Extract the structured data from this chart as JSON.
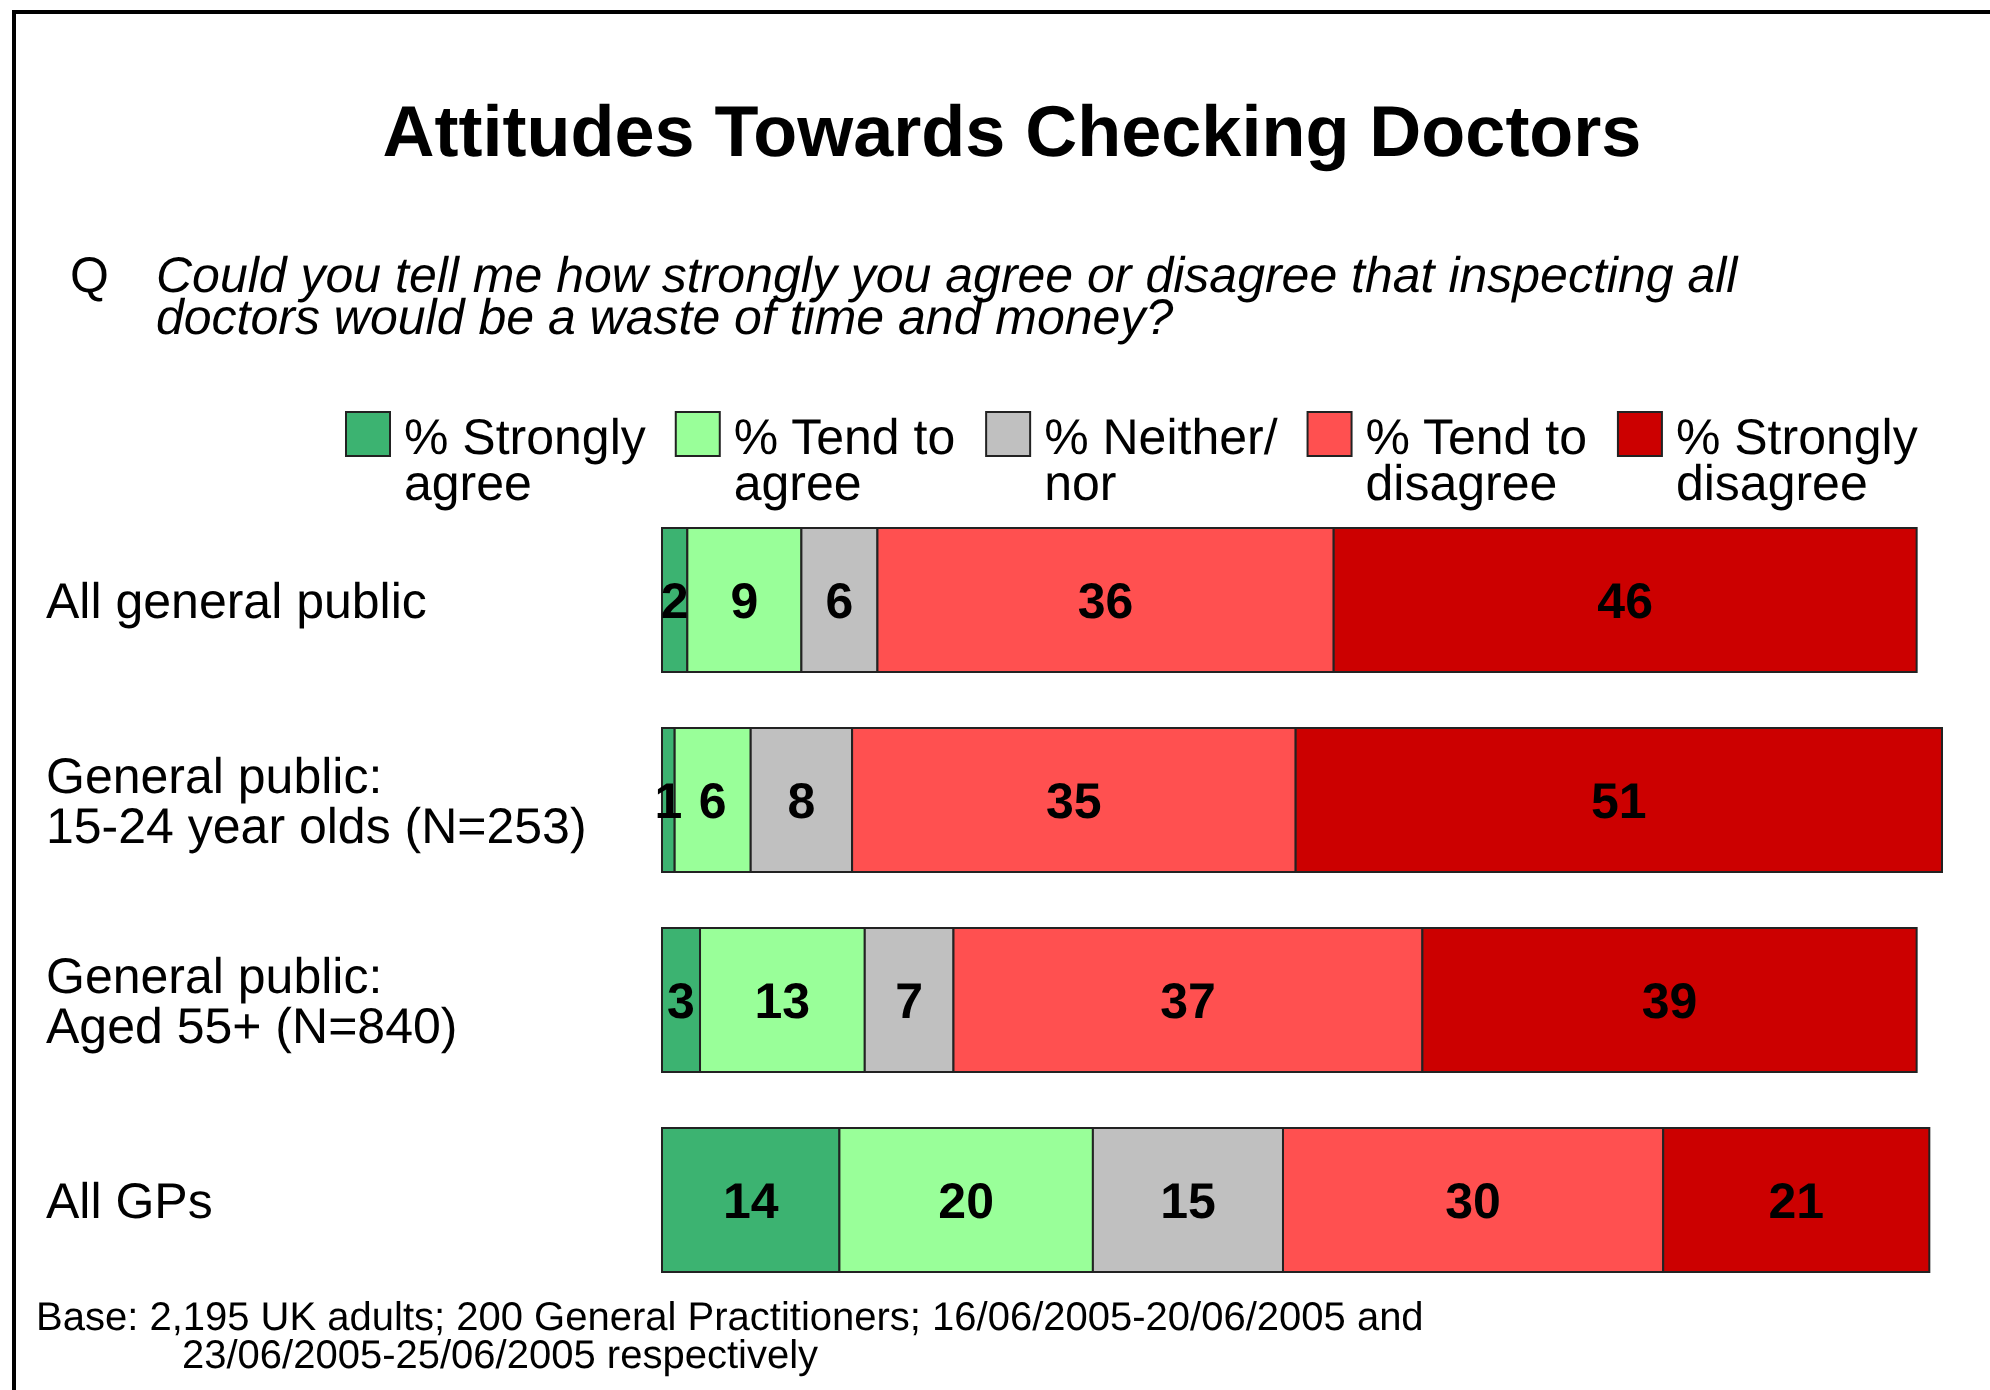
{
  "chart_data": {
    "type": "bar",
    "orientation": "horizontal",
    "stacked": true,
    "data_labels": true,
    "legend": "top",
    "title": "Attitudes Towards Checking Doctors",
    "subtitle": "Q Could you tell me how strongly you agree or disagree that inspecting all doctors would be a waste of time and money?",
    "categories": [
      "All general public",
      "General public: 15-24 year olds (N=253)",
      "General public: Aged 55+ (N=840)",
      "All GPs"
    ],
    "series": [
      {
        "name": "% Strongly agree",
        "color": "#3cb371",
        "values": [
          2,
          1,
          3,
          14
        ]
      },
      {
        "name": "% Tend to agree",
        "color": "#99ff99",
        "values": [
          9,
          6,
          13,
          20
        ]
      },
      {
        "name": "% Neither/ nor",
        "color": "#c0c0c0",
        "values": [
          6,
          8,
          7,
          15
        ]
      },
      {
        "name": "% Tend to disagree",
        "color": "#ff5050",
        "values": [
          36,
          35,
          37,
          30
        ]
      },
      {
        "name": "% Strongly disagree",
        "color": "#cc0000",
        "values": [
          46,
          51,
          39,
          21
        ]
      }
    ],
    "annotations": [
      "Base: 2,195 UK adults; 200 General Practitioners; 16/06/2005-20/06/2005 and 23/06/2005-25/06/2005 respectively"
    ]
  }
}
